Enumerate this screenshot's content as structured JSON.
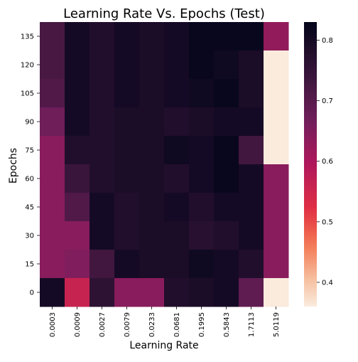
{
  "chart_data": {
    "type": "heatmap",
    "title": "Learning Rate Vs. Epochs (Test)",
    "xlabel": "Learning Rate",
    "ylabel": "Epochs",
    "x_categories": [
      "0.0003",
      "0.0009",
      "0.0027",
      "0.0079",
      "0.0233",
      "0.0681",
      "0.1995",
      "0.5843",
      "1.7113",
      "5.0119"
    ],
    "y_categories": [
      "135",
      "120",
      "105",
      "90",
      "75",
      "60",
      "45",
      "30",
      "15",
      "0"
    ],
    "values": [
      [
        0.72,
        0.8,
        0.78,
        0.8,
        0.79,
        0.8,
        0.82,
        0.82,
        0.82,
        0.63
      ],
      [
        0.72,
        0.8,
        0.78,
        0.8,
        0.79,
        0.8,
        0.82,
        0.81,
        0.79,
        0.36
      ],
      [
        0.71,
        0.8,
        0.78,
        0.8,
        0.79,
        0.8,
        0.81,
        0.82,
        0.79,
        0.36
      ],
      [
        0.67,
        0.8,
        0.78,
        0.79,
        0.79,
        0.78,
        0.79,
        0.8,
        0.8,
        0.36
      ],
      [
        0.64,
        0.78,
        0.78,
        0.79,
        0.79,
        0.81,
        0.8,
        0.82,
        0.73,
        0.36
      ],
      [
        0.64,
        0.74,
        0.78,
        0.79,
        0.79,
        0.78,
        0.8,
        0.82,
        0.8,
        0.64
      ],
      [
        0.64,
        0.71,
        0.8,
        0.78,
        0.79,
        0.8,
        0.78,
        0.8,
        0.8,
        0.64
      ],
      [
        0.64,
        0.64,
        0.8,
        0.78,
        0.79,
        0.79,
        0.77,
        0.78,
        0.8,
        0.64
      ],
      [
        0.64,
        0.65,
        0.73,
        0.8,
        0.79,
        0.79,
        0.81,
        0.8,
        0.78,
        0.64
      ],
      [
        0.8,
        0.56,
        0.76,
        0.64,
        0.64,
        0.78,
        0.79,
        0.8,
        0.69,
        0.36
      ]
    ],
    "colorbar": {
      "min": 0.36,
      "max": 0.83,
      "ticks": [
        "0.4",
        "0.5",
        "0.6",
        "0.7",
        "0.8"
      ],
      "colormap": "rocket_r"
    },
    "grid": false,
    "legend": "none"
  }
}
